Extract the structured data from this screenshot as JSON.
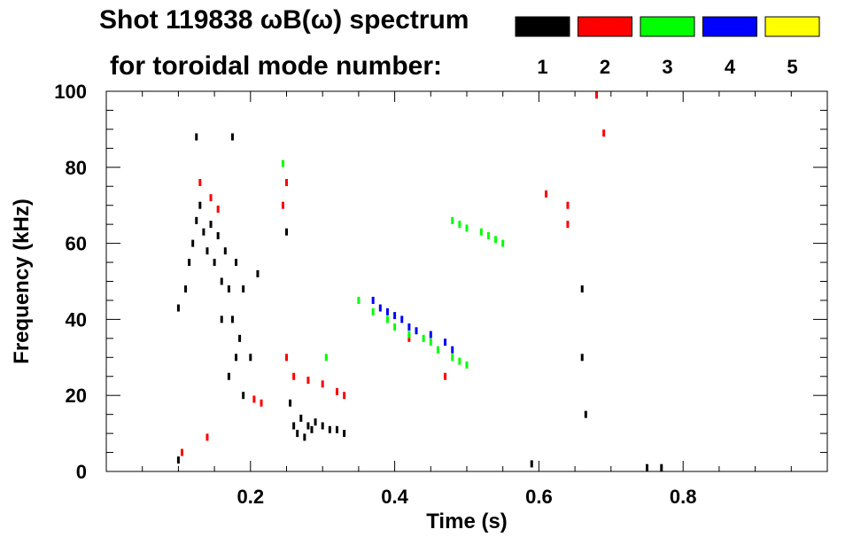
{
  "title": {
    "line1": "Shot 119838 ωB(ω) spectrum",
    "line2": "for toroidal mode number:"
  },
  "colors": {
    "mode1": "#000000",
    "mode2": "#ff0000",
    "mode3": "#00ff00",
    "mode4": "#0000ff",
    "mode5": "#ffff00"
  },
  "chart_data": {
    "type": "scatter",
    "title": "Shot 119838 ωB(ω) spectrum for toroidal mode number:",
    "xlabel": "Time (s)",
    "ylabel": "Frequency (kHz)",
    "xlim": [
      0.0,
      1.0
    ],
    "ylim": [
      0,
      100
    ],
    "x_ticks": [
      0.2,
      0.4,
      0.6,
      0.8
    ],
    "x_tick_labels": [
      "0.2",
      "0.4",
      "0.6",
      "0.8"
    ],
    "y_ticks": [
      0,
      20,
      40,
      60,
      80,
      100
    ],
    "y_tick_labels": [
      "0",
      "20",
      "40",
      "60",
      "80",
      "100"
    ],
    "grid": false,
    "legend": "top-right",
    "series": [
      {
        "name": "1",
        "color": "#000000",
        "points": [
          [
            0.1,
            43
          ],
          [
            0.11,
            48
          ],
          [
            0.115,
            55
          ],
          [
            0.12,
            60
          ],
          [
            0.125,
            66
          ],
          [
            0.13,
            70
          ],
          [
            0.135,
            63
          ],
          [
            0.14,
            58
          ],
          [
            0.145,
            65
          ],
          [
            0.15,
            55
          ],
          [
            0.155,
            62
          ],
          [
            0.16,
            50
          ],
          [
            0.165,
            58
          ],
          [
            0.17,
            48
          ],
          [
            0.175,
            40
          ],
          [
            0.18,
            55
          ],
          [
            0.185,
            35
          ],
          [
            0.19,
            48
          ],
          [
            0.2,
            30
          ],
          [
            0.21,
            52
          ],
          [
            0.125,
            88
          ],
          [
            0.16,
            40
          ],
          [
            0.17,
            25
          ],
          [
            0.175,
            88
          ],
          [
            0.18,
            30
          ],
          [
            0.19,
            20
          ],
          [
            0.255,
            18
          ],
          [
            0.26,
            12
          ],
          [
            0.265,
            10
          ],
          [
            0.27,
            14
          ],
          [
            0.275,
            9
          ],
          [
            0.28,
            12
          ],
          [
            0.285,
            11
          ],
          [
            0.29,
            13
          ],
          [
            0.3,
            12
          ],
          [
            0.31,
            11
          ],
          [
            0.32,
            11
          ],
          [
            0.33,
            10
          ],
          [
            0.25,
            63
          ],
          [
            0.1,
            3
          ],
          [
            0.59,
            2
          ],
          [
            0.66,
            48
          ],
          [
            0.66,
            30
          ],
          [
            0.665,
            15
          ],
          [
            0.75,
            1
          ],
          [
            0.77,
            1
          ]
        ]
      },
      {
        "name": "2",
        "color": "#ff0000",
        "points": [
          [
            0.13,
            76
          ],
          [
            0.145,
            72
          ],
          [
            0.155,
            69
          ],
          [
            0.245,
            70
          ],
          [
            0.25,
            76
          ],
          [
            0.25,
            30
          ],
          [
            0.26,
            25
          ],
          [
            0.28,
            24
          ],
          [
            0.3,
            23
          ],
          [
            0.32,
            21
          ],
          [
            0.33,
            20
          ],
          [
            0.205,
            19
          ],
          [
            0.215,
            18
          ],
          [
            0.14,
            9
          ],
          [
            0.105,
            5
          ],
          [
            0.42,
            35
          ],
          [
            0.47,
            25
          ],
          [
            0.61,
            73
          ],
          [
            0.64,
            65
          ],
          [
            0.64,
            70
          ],
          [
            0.68,
            99
          ],
          [
            0.69,
            89
          ]
        ]
      },
      {
        "name": "3",
        "color": "#00ff00",
        "points": [
          [
            0.245,
            81
          ],
          [
            0.35,
            45
          ],
          [
            0.37,
            42
          ],
          [
            0.39,
            40
          ],
          [
            0.4,
            38
          ],
          [
            0.42,
            36
          ],
          [
            0.44,
            35
          ],
          [
            0.45,
            34
          ],
          [
            0.46,
            32
          ],
          [
            0.48,
            30
          ],
          [
            0.49,
            29
          ],
          [
            0.5,
            28
          ],
          [
            0.48,
            66
          ],
          [
            0.49,
            65
          ],
          [
            0.5,
            64
          ],
          [
            0.52,
            63
          ],
          [
            0.53,
            62
          ],
          [
            0.54,
            61
          ],
          [
            0.55,
            60
          ],
          [
            0.305,
            30
          ]
        ]
      },
      {
        "name": "4",
        "color": "#0000ff",
        "points": [
          [
            0.37,
            45
          ],
          [
            0.38,
            43
          ],
          [
            0.39,
            42
          ],
          [
            0.4,
            41
          ],
          [
            0.41,
            40
          ],
          [
            0.42,
            38
          ],
          [
            0.43,
            37
          ],
          [
            0.45,
            36
          ],
          [
            0.47,
            34
          ],
          [
            0.48,
            32
          ]
        ]
      },
      {
        "name": "5",
        "color": "#ffff00",
        "points": []
      }
    ]
  }
}
